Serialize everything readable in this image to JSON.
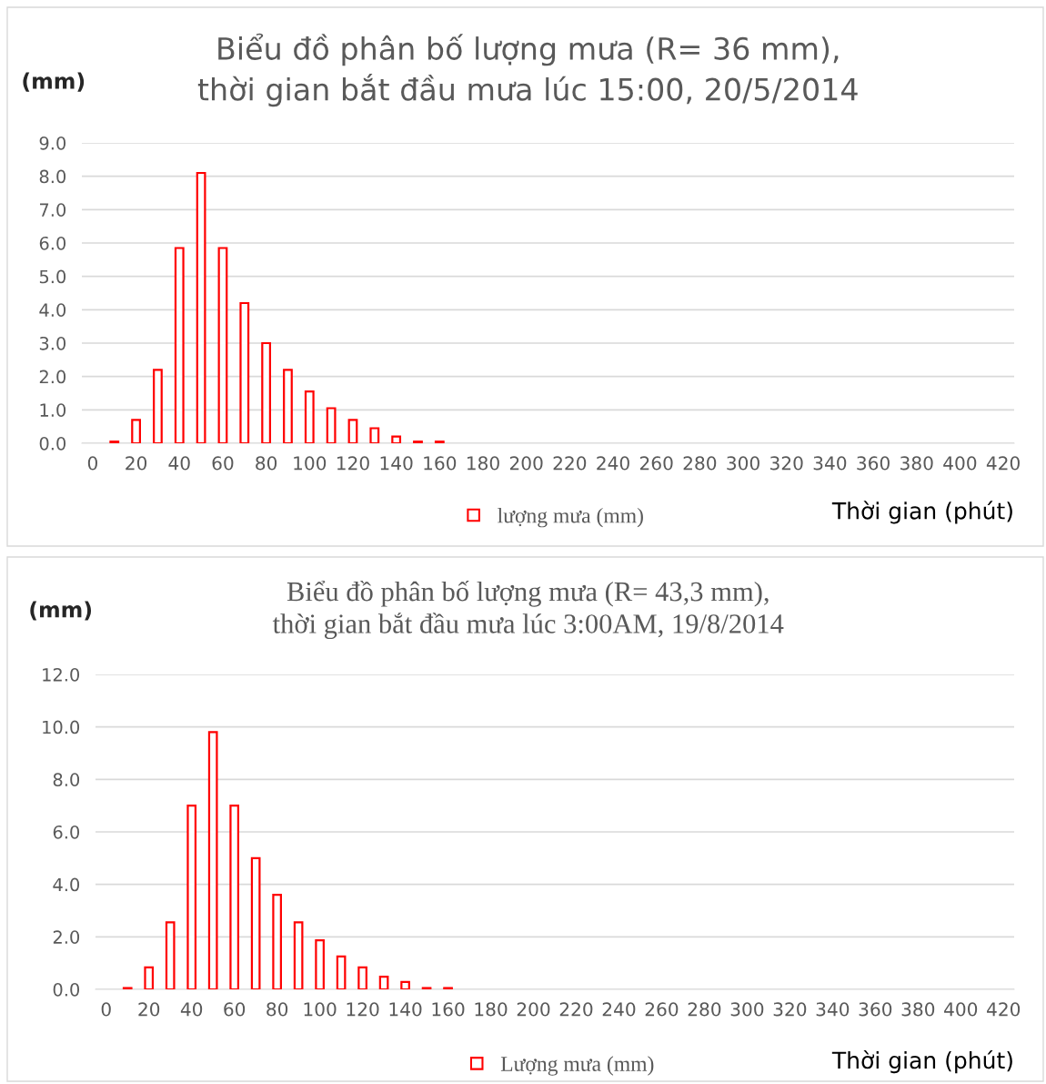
{
  "chart_data": [
    {
      "type": "bar",
      "title": "Biểu đồ phân bố lượng mưa (R= 36 mm),\nthời gian bắt đầu mưa lúc 15:00, 20/5/2014",
      "ylabel": "(mm)",
      "xlabel": "Thời gian (phút)",
      "x": [
        10,
        20,
        30,
        40,
        50,
        60,
        70,
        80,
        90,
        100,
        110,
        120,
        130,
        140,
        150,
        160
      ],
      "series": [
        {
          "name": "lượng mưa (mm)",
          "color": "#ff0000",
          "values": [
            0.05,
            0.7,
            2.2,
            5.85,
            8.1,
            5.85,
            4.2,
            3.0,
            2.2,
            1.55,
            1.05,
            0.7,
            0.45,
            0.2,
            0.05,
            0.05
          ]
        }
      ],
      "xlim": [
        -5,
        425
      ],
      "xticks": [
        0,
        20,
        40,
        60,
        80,
        100,
        120,
        140,
        160,
        180,
        200,
        220,
        240,
        260,
        280,
        300,
        320,
        340,
        360,
        380,
        400,
        420
      ],
      "ylim": [
        0,
        9
      ],
      "yticks": [
        {
          "value": 0,
          "label": "0.0"
        },
        {
          "value": 1,
          "label": "1.0"
        },
        {
          "value": 2,
          "label": "2.0"
        },
        {
          "value": 3,
          "label": "3.0"
        },
        {
          "value": 4,
          "label": "4.0"
        },
        {
          "value": 5,
          "label": "5.0"
        },
        {
          "value": 6,
          "label": "6.0"
        },
        {
          "value": 7,
          "label": "7.0"
        },
        {
          "value": 8,
          "label": "8.0"
        },
        {
          "value": 9,
          "label": "9.0"
        }
      ],
      "grid": "y",
      "legend": "bottom"
    },
    {
      "type": "bar",
      "title": "Biểu đồ phân bố lượng mưa (R= 43,3 mm),\nthời gian bắt đầu mưa lúc 3:00AM, 19/8/2014",
      "ylabel": "(mm)",
      "xlabel": "Thời gian (phút)",
      "x": [
        10,
        20,
        30,
        40,
        50,
        60,
        70,
        80,
        90,
        100,
        110,
        120,
        130,
        140,
        150,
        160
      ],
      "series": [
        {
          "name": "Lượng mưa (mm)",
          "color": "#ff0000",
          "values": [
            0.05,
            0.84,
            2.55,
            7.0,
            9.8,
            7.0,
            5.0,
            3.6,
            2.55,
            1.87,
            1.25,
            0.84,
            0.48,
            0.28,
            0.05,
            0.05
          ]
        }
      ],
      "xlim": [
        -5,
        425
      ],
      "xticks": [
        0,
        20,
        40,
        60,
        80,
        100,
        120,
        140,
        160,
        180,
        200,
        220,
        240,
        260,
        280,
        300,
        320,
        340,
        360,
        380,
        400,
        420
      ],
      "ylim": [
        0,
        12
      ],
      "yticks": [
        {
          "value": 0,
          "label": "0.0"
        },
        {
          "value": 2,
          "label": "2.0"
        },
        {
          "value": 4,
          "label": "4.0"
        },
        {
          "value": 6,
          "label": "6.0"
        },
        {
          "value": 8,
          "label": "8.0"
        },
        {
          "value": 10,
          "label": "10.0"
        },
        {
          "value": 12,
          "label": "12.0"
        }
      ],
      "grid": "y",
      "legend": "bottom"
    }
  ]
}
